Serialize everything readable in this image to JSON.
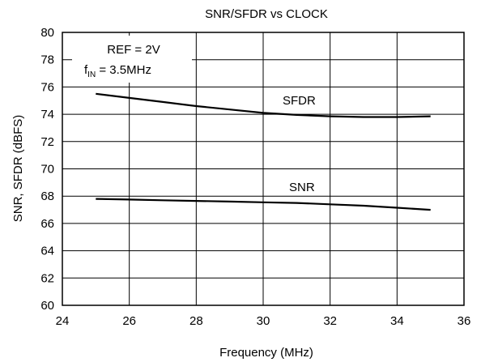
{
  "chart_data": {
    "type": "line",
    "title": "SNR/SFDR vs CLOCK",
    "xlabel": "Frequency (MHz)",
    "ylabel": "SNR, SFDR (dBFS)",
    "xlim": [
      24,
      36
    ],
    "ylim": [
      60,
      80
    ],
    "xticks": [
      "24",
      "26",
      "28",
      "30",
      "32",
      "34",
      "36"
    ],
    "yticks": [
      "60",
      "62",
      "64",
      "66",
      "68",
      "70",
      "72",
      "74",
      "76",
      "78",
      "80"
    ],
    "grid": true,
    "annotation": {
      "ref": "REF = 2V",
      "fin_prefix": "f",
      "fin_sub": "IN",
      "fin_value": " = 3.5MHz"
    },
    "series": [
      {
        "name": "SFDR",
        "x": [
          25,
          26,
          27,
          28,
          29,
          30,
          31,
          32,
          33,
          34,
          35
        ],
        "y": [
          75.5,
          75.2,
          74.9,
          74.6,
          74.35,
          74.1,
          73.95,
          73.85,
          73.8,
          73.8,
          73.85
        ]
      },
      {
        "name": "SNR",
        "x": [
          25,
          26,
          27,
          28,
          29,
          30,
          31,
          32,
          33,
          34,
          35
        ],
        "y": [
          67.8,
          67.75,
          67.7,
          67.65,
          67.6,
          67.55,
          67.5,
          67.4,
          67.3,
          67.15,
          67.0
        ]
      }
    ]
  }
}
